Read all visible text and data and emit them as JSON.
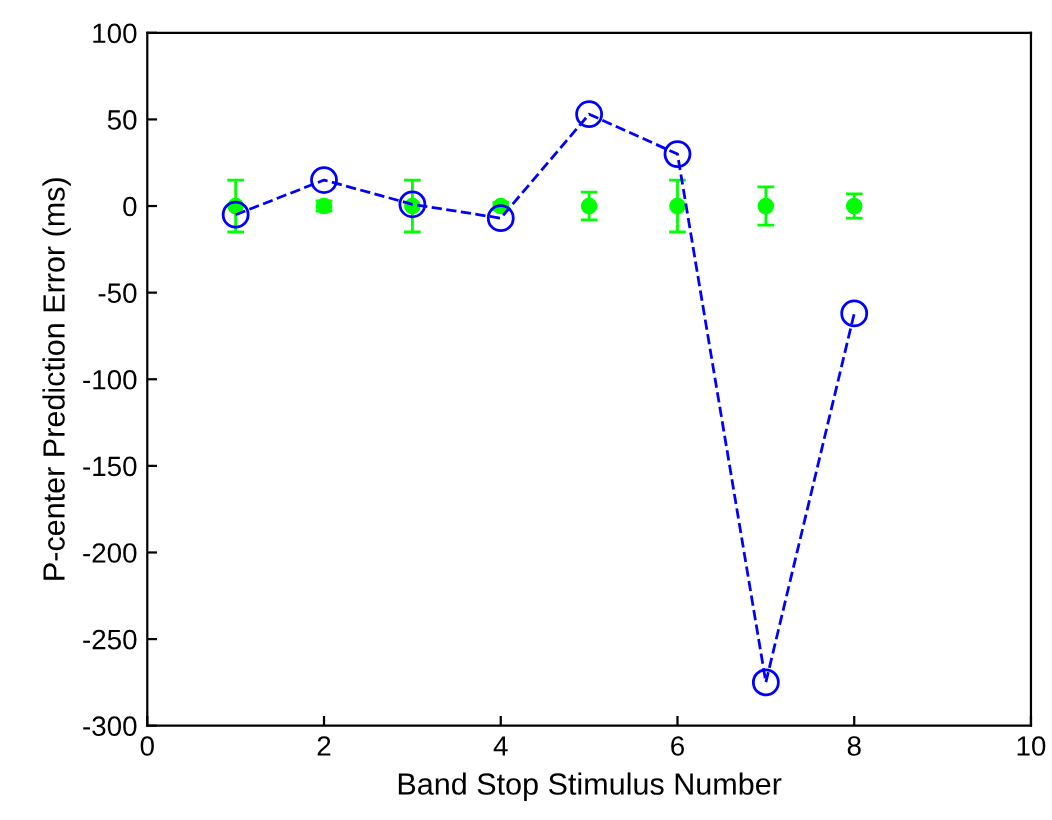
{
  "chart_data": {
    "type": "line",
    "xlabel": "Band Stop Stimulus Number",
    "ylabel": "P-center Prediction Error (ms)",
    "xlim": [
      0,
      10
    ],
    "xticks": [
      0,
      2,
      4,
      6,
      8,
      10
    ],
    "ylim": [
      -300,
      100
    ],
    "yticks": [
      -300,
      -250,
      -200,
      -150,
      -100,
      -50,
      0,
      50,
      100
    ],
    "grid": false,
    "x": [
      1,
      2,
      3,
      4,
      5,
      6,
      7,
      8
    ],
    "series": [
      {
        "type": "scatter",
        "color": "#00ff00",
        "marker": "circle",
        "values": [
          0,
          0,
          0,
          0,
          0,
          0,
          0,
          0
        ],
        "errors": [
          15,
          3,
          15,
          2,
          8,
          15,
          11,
          7
        ]
      },
      {
        "color": "#0000ff",
        "marker": "circle",
        "line_style": "dashed",
        "values": [
          -5,
          15,
          1,
          -7,
          53,
          30,
          -275,
          -62
        ]
      }
    ]
  }
}
